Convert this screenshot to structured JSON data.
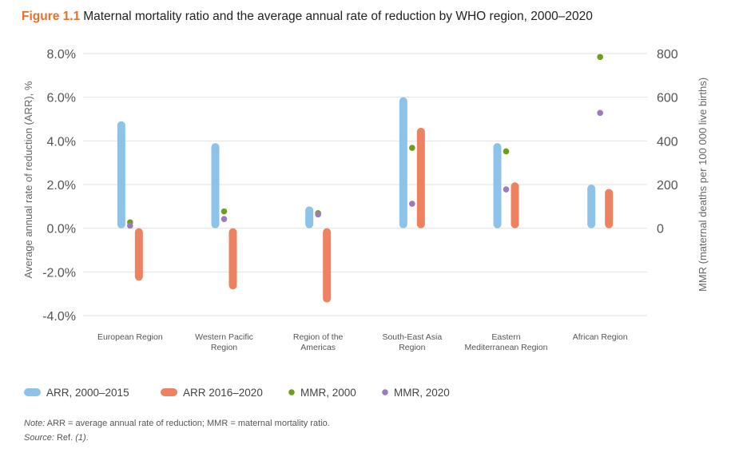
{
  "figure": {
    "number": "Figure 1.1",
    "title": "Maternal mortality ratio and the average annual rate of reduction by WHO region, 2000–2020"
  },
  "notes": {
    "note_label": "Note:",
    "note_text": " ARR = average annual rate of reduction; MMR = maternal mortality ratio.",
    "source_label": "Source:",
    "source_text": " Ref. ",
    "source_ref": "(1)",
    "source_end": "."
  },
  "colors": {
    "arr_2000_2015": "#8dc3e8",
    "arr_2016_2020": "#ee8160",
    "mmr_2000": "#6d9e1e",
    "mmr_2020": "#9b7bbe"
  },
  "chart_data": {
    "type": "bar",
    "categories": [
      "European Region",
      "Western Pacific Region",
      "Region of the Americas",
      "South-East Asia Region",
      "Eastern Mediterranean Region",
      "African Region"
    ],
    "category_labels": [
      [
        "European Region"
      ],
      [
        "Western Pacific",
        "Region"
      ],
      [
        "Region of the",
        "Americas"
      ],
      [
        "South-East Asia",
        "Region"
      ],
      [
        "Eastern",
        "Mediterranean Region"
      ],
      [
        "African Region"
      ]
    ],
    "series": [
      {
        "name": "ARR, 2000–2015",
        "kind": "bar",
        "axis": "left",
        "values": [
          4.9,
          3.9,
          1.0,
          6.0,
          3.9,
          2.0
        ]
      },
      {
        "name": "ARR 2016–2020",
        "kind": "bar",
        "axis": "left",
        "values": [
          -2.4,
          -2.8,
          -3.4,
          4.6,
          2.1,
          1.8
        ]
      },
      {
        "name": "MMR, 2000",
        "kind": "point",
        "axis": "right",
        "values": [
          27,
          77,
          69,
          368,
          352,
          784
        ]
      },
      {
        "name": "MMR, 2020",
        "kind": "point",
        "axis": "right",
        "values": [
          12,
          42,
          63,
          112,
          178,
          528
        ]
      }
    ],
    "y_left": {
      "label": "Average annual rate of reduction (ARR), %",
      "ylim": [
        -4.0,
        8.0
      ],
      "ticks": [
        8.0,
        6.0,
        4.0,
        2.0,
        0.0,
        -2.0,
        -4.0
      ],
      "tick_labels": [
        "8.0%",
        "6.0%",
        "4.0%",
        "2.0%",
        "0.0%",
        "-2.0%",
        "-4.0%"
      ]
    },
    "y_right": {
      "label": "MMR (maternal deaths per 100 000 live births)",
      "ylim": [
        -400,
        800
      ],
      "ticks": [
        800,
        600,
        400,
        200,
        0
      ],
      "tick_labels": [
        "800",
        "600",
        "400",
        "200",
        "0"
      ]
    },
    "grid": true,
    "legend_position": "bottom"
  }
}
